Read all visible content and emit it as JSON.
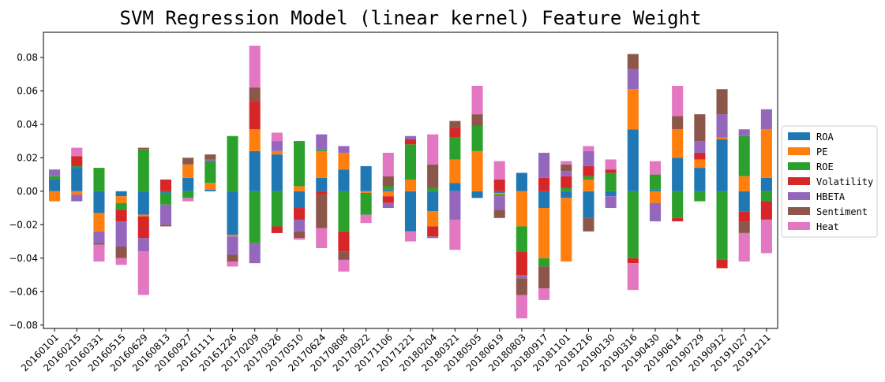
{
  "chart_data": {
    "type": "bar",
    "stacked": true,
    "title": "SVM Regression Model (linear kernel) Feature Weight",
    "xlabel": "",
    "ylabel": "",
    "ylim": [
      -0.082,
      0.095
    ],
    "yticks": [
      -0.08,
      -0.06,
      -0.04,
      -0.02,
      0.0,
      0.02,
      0.04,
      0.06,
      0.08
    ],
    "ytick_labels": [
      "−0.08",
      "−0.06",
      "−0.04",
      "−0.02",
      "0.00",
      "0.02",
      "0.04",
      "0.06",
      "0.08"
    ],
    "grid": false,
    "legend_position": "center-right",
    "categories": [
      "20160101",
      "20160215",
      "20160331",
      "20160515",
      "20160629",
      "20160813",
      "20160927",
      "20161111",
      "20161226",
      "20170209",
      "20170326",
      "20170510",
      "20170624",
      "20170808",
      "20170922",
      "20171106",
      "20171221",
      "20180204",
      "20180321",
      "20180505",
      "20180619",
      "20180803",
      "20180917",
      "20181101",
      "20181216",
      "20190130",
      "20190316",
      "20190430",
      "20190614",
      "20190729",
      "20190912",
      "20191027",
      "20191211"
    ],
    "series": [
      {
        "name": "ROA",
        "color": "#1f77b4",
        "values": [
          0.007,
          0.014,
          -0.013,
          -0.003,
          -0.014,
          -0.001,
          0.008,
          0.001,
          -0.026,
          0.024,
          0.022,
          -0.01,
          0.008,
          0.013,
          0.015,
          0.001,
          -0.024,
          -0.012,
          0.005,
          -0.004,
          -0.001,
          0.011,
          -0.01,
          -0.004,
          -0.016,
          -0.003,
          0.037,
          0.001,
          0.02,
          0.014,
          0.031,
          -0.012,
          0.008
        ]
      },
      {
        "name": "PE",
        "color": "#ff7f0e",
        "values": [
          -0.006,
          -0.002,
          -0.011,
          -0.004,
          -0.001,
          0.0,
          0.008,
          0.004,
          -0.001,
          0.013,
          0.002,
          0.003,
          0.016,
          0.01,
          -0.001,
          -0.003,
          0.007,
          -0.009,
          0.014,
          0.024,
          -0.001,
          -0.021,
          -0.03,
          -0.038,
          0.007,
          0.0,
          0.024,
          -0.007,
          0.017,
          0.005,
          0.001,
          0.009,
          0.029
        ]
      },
      {
        "name": "ROE",
        "color": "#2ca02c",
        "values": [
          0.002,
          0.001,
          0.014,
          -0.004,
          0.025,
          -0.007,
          -0.004,
          0.013,
          0.033,
          -0.031,
          -0.021,
          0.027,
          0.001,
          -0.024,
          -0.013,
          0.002,
          0.021,
          0.002,
          0.013,
          0.015,
          -0.001,
          -0.015,
          -0.005,
          0.002,
          0.002,
          0.011,
          -0.04,
          0.009,
          -0.016,
          -0.006,
          -0.041,
          0.024,
          -0.006
        ]
      },
      {
        "name": "Volatility",
        "color": "#d62728",
        "values": [
          0.0,
          0.006,
          0.0,
          -0.007,
          -0.013,
          0.007,
          0.0,
          0.0,
          0.0,
          0.017,
          -0.004,
          -0.007,
          -0.002,
          -0.012,
          0.0,
          -0.004,
          0.003,
          -0.006,
          0.006,
          0.0,
          0.007,
          -0.014,
          0.008,
          0.007,
          0.006,
          0.002,
          -0.003,
          0.0,
          -0.002,
          0.004,
          -0.005,
          -0.006,
          -0.011
        ]
      },
      {
        "name": "HBETA",
        "color": "#9467bd",
        "values": [
          0.004,
          -0.004,
          -0.007,
          -0.015,
          -0.008,
          -0.012,
          0.0,
          0.001,
          -0.011,
          -0.012,
          0.006,
          -0.007,
          0.009,
          0.004,
          0.0,
          -0.003,
          0.002,
          -0.001,
          -0.017,
          0.0,
          -0.008,
          -0.002,
          0.015,
          0.003,
          0.009,
          -0.007,
          0.012,
          -0.011,
          0.0,
          0.007,
          0.014,
          0.004,
          0.012
        ]
      },
      {
        "name": "Sentiment",
        "color": "#8c564b",
        "values": [
          0.0,
          0.0,
          -0.001,
          -0.007,
          0.001,
          -0.001,
          0.004,
          0.003,
          -0.004,
          0.008,
          0.0,
          -0.004,
          -0.02,
          -0.005,
          0.0,
          0.006,
          0.0,
          0.014,
          0.004,
          0.007,
          -0.005,
          -0.01,
          -0.013,
          0.004,
          -0.008,
          0.0,
          0.009,
          0.0,
          0.008,
          0.016,
          0.015,
          -0.007,
          0.0
        ]
      },
      {
        "name": "Heat",
        "color": "#e377c2",
        "values": [
          0.0,
          0.005,
          -0.01,
          -0.004,
          -0.026,
          0.0,
          -0.002,
          0.0,
          -0.003,
          0.025,
          0.005,
          -0.001,
          -0.012,
          -0.007,
          -0.005,
          0.014,
          -0.006,
          0.018,
          -0.018,
          0.017,
          0.011,
          -0.014,
          -0.007,
          0.002,
          0.003,
          0.006,
          -0.016,
          0.008,
          0.018,
          0.0,
          0.0,
          -0.017,
          -0.02
        ]
      }
    ]
  }
}
